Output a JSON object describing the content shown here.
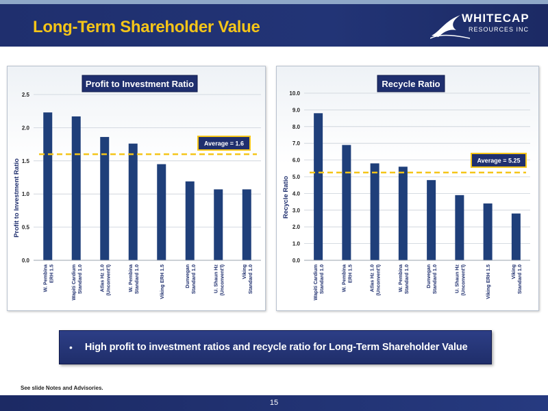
{
  "header": {
    "title": "Long-Term Shareholder Value",
    "logo": {
      "line1": "WHITECAP",
      "line2": "RESOURCES INC"
    }
  },
  "chart_data": [
    {
      "type": "bar",
      "title": "Profit to Investment Ratio",
      "ylabel": "Profit to Investment Ratio",
      "xlabel": "",
      "ylim": [
        0,
        2.5
      ],
      "yticks": [
        "0.0",
        "0.5",
        "1.0",
        "1.5",
        "2.0",
        "2.5"
      ],
      "categories": [
        [
          "W. Pembina",
          "ERH 1.5"
        ],
        [
          "Wapiti Cardium",
          "Standard 1.0"
        ],
        [
          "Atlas Hz 1.0",
          "(Unconvent'l)"
        ],
        [
          "W. Pembina",
          "Standard 1.0"
        ],
        [
          "Viking ERH 1.5"
        ],
        [
          "Dunvegan",
          "Standard 1.0"
        ],
        [
          "U. Shaun Hz",
          "(Unconvent'l)"
        ],
        [
          "Viking",
          "Standard 1.0"
        ]
      ],
      "values": [
        2.23,
        2.17,
        1.86,
        1.76,
        1.45,
        1.19,
        1.07,
        1.07
      ],
      "average": {
        "value": 1.6,
        "label": "Average = 1.6"
      },
      "grid": true,
      "colors": {
        "bar": "#1f3f7a",
        "average": "#f5c518"
      }
    },
    {
      "type": "bar",
      "title": "Recycle Ratio",
      "ylabel": "Recycle Ratio",
      "xlabel": "",
      "ylim": [
        0,
        10
      ],
      "yticks": [
        "0.0",
        "1.0",
        "2.0",
        "3.0",
        "4.0",
        "5.0",
        "6.0",
        "7.0",
        "8.0",
        "9.0",
        "10.0"
      ],
      "categories": [
        [
          "Wapiti Cardium",
          "Standard 1.0"
        ],
        [
          "W. Pembina",
          "ERH 1.5"
        ],
        [
          "Atlas Hz 1.0",
          "(Unconvent'l)"
        ],
        [
          "W. Pembina",
          "Standard 1.0"
        ],
        [
          "Dunvegan",
          "Standard 1.0"
        ],
        [
          "U. Shaun Hz",
          "(Unconvent'l)"
        ],
        [
          "Viking ERH 1.5"
        ],
        [
          "Viking",
          "Standard 1.0"
        ]
      ],
      "values": [
        8.8,
        6.9,
        5.8,
        5.6,
        4.8,
        3.9,
        3.4,
        2.8
      ],
      "average": {
        "value": 5.25,
        "label": "Average = 5.25"
      },
      "grid": true,
      "colors": {
        "bar": "#1f3f7a",
        "average": "#f5c518"
      }
    }
  ],
  "bullet": {
    "symbol": "•",
    "text": "High profit to investment ratios and recycle ratio for Long-Term Shareholder Value"
  },
  "footer": {
    "notes": "See slide Notes and Advisories.",
    "page": "15"
  }
}
